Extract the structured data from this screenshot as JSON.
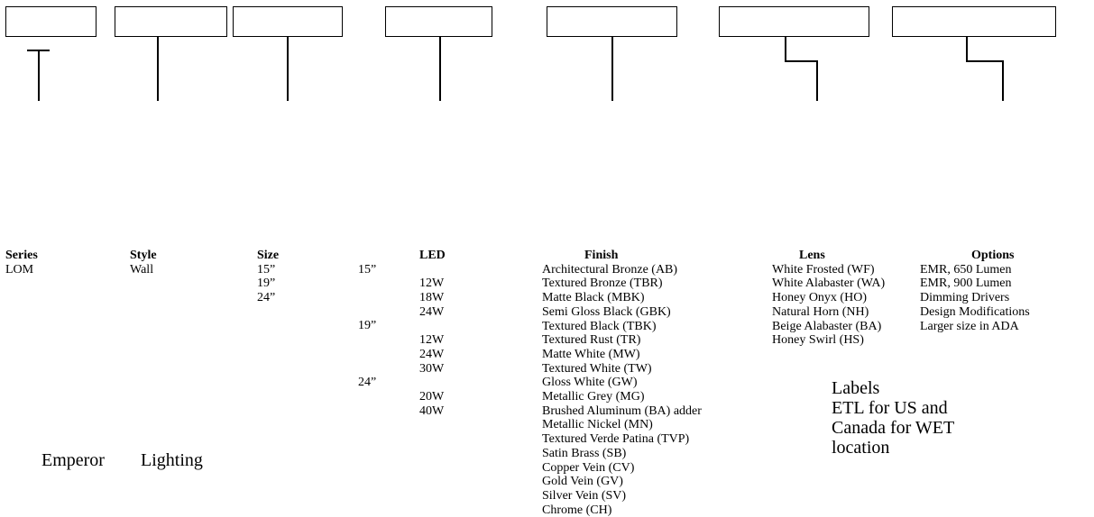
{
  "series": {
    "header": "Series",
    "items": [
      "LOM"
    ]
  },
  "style": {
    "header": "Style",
    "items": [
      "Wall"
    ]
  },
  "size": {
    "header": "Size",
    "items": [
      "15”",
      "19”",
      "24”"
    ]
  },
  "led": {
    "header": "LED",
    "groups": [
      {
        "size": "15”",
        "watts": [
          "12W",
          "18W",
          "24W"
        ]
      },
      {
        "size": "19”",
        "watts": [
          "12W",
          "24W",
          "30W"
        ]
      },
      {
        "size": "24”",
        "watts": [
          "20W",
          "40W"
        ]
      }
    ]
  },
  "finish": {
    "header": "Finish",
    "items": [
      "Architectural Bronze (AB)",
      "Textured Bronze (TBR)",
      "Matte Black (MBK)",
      "Semi Gloss Black (GBK)",
      "Textured Black (TBK)",
      "Textured Rust (TR)",
      "Matte White (MW)",
      "Textured White (TW)",
      "Gloss White (GW)",
      "Metallic Grey (MG)",
      "Brushed Aluminum (BA) adder",
      "Metallic Nickel (MN)",
      "Textured Verde Patina (TVP)",
      "Satin Brass (SB)",
      "Copper Vein (CV)",
      "Gold Vein (GV)",
      "Silver Vein (SV)",
      "Chrome (CH)"
    ]
  },
  "lens": {
    "header": "Lens",
    "items": [
      "White Frosted (WF)",
      "White Alabaster (WA)",
      "Honey Onyx (HO)",
      "Natural Horn (NH)",
      "Beige Alabaster (BA)",
      "Honey Swirl (HS)"
    ]
  },
  "options": {
    "header": "Options",
    "items": [
      "EMR, 650 Lumen",
      "EMR, 900 Lumen",
      "Dimming Drivers",
      "Design Modifications",
      "Larger size in ADA"
    ]
  },
  "labels_note": [
    "Labels",
    "ETL for US and",
    "Canada for WET",
    "location"
  ],
  "footer": [
    "Emperor",
    "Lighting"
  ]
}
